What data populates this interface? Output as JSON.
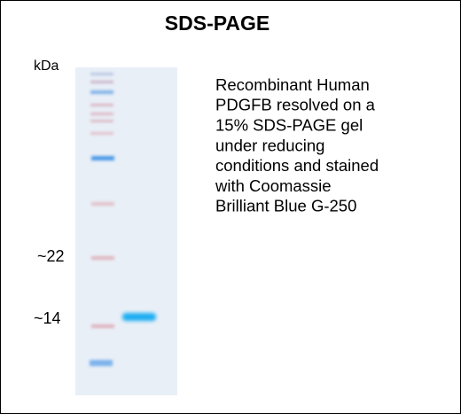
{
  "header": {
    "title": "SDS-PAGE"
  },
  "gel": {
    "unit": "kDa",
    "markers": [
      "~22",
      "~14"
    ]
  },
  "description": {
    "lines": [
      "Recombinant Human",
      "PDGFB resolved on a",
      "15% SDS-PAGE gel",
      "under reducing",
      "conditions and stained",
      "with Coomassie",
      "Brilliant Blue G-250"
    ]
  }
}
